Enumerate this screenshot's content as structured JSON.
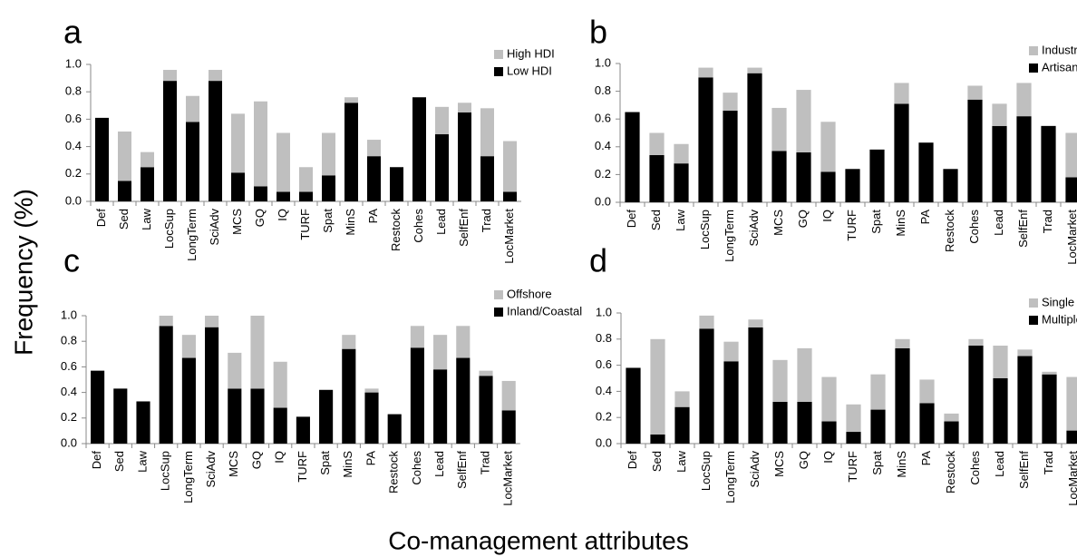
{
  "y_label": "Frequency (%)",
  "x_label": "Co-management attributes",
  "chart_data": [
    {
      "type": "bar",
      "stacked": true,
      "panel_label": "a",
      "categories": [
        "Def",
        "Sed",
        "Law",
        "LocSup",
        "LongTerm",
        "SciAdv",
        "MCS",
        "GQ",
        "IQ",
        "TURF",
        "Spat",
        "MinS",
        "PA",
        "Restock",
        "Cohes",
        "Lead",
        "SelfEnf",
        "Trad",
        "LocMarket"
      ],
      "series": [
        {
          "name": "Low HDI",
          "color": "#000000",
          "values": [
            0.61,
            0.15,
            0.25,
            0.88,
            0.58,
            0.88,
            0.21,
            0.11,
            0.07,
            0.07,
            0.19,
            0.72,
            0.33,
            0.25,
            0.76,
            0.49,
            0.65,
            0.33,
            0.07
          ]
        },
        {
          "name": "High HDI",
          "color": "#bfbfbf",
          "values": [
            0,
            0.36,
            0.11,
            0.08,
            0.19,
            0.08,
            0.43,
            0.62,
            0.43,
            0.18,
            0.31,
            0.04,
            0.12,
            0,
            0,
            0.2,
            0.07,
            0.35,
            0.37
          ]
        }
      ],
      "ylim": [
        0,
        1
      ],
      "yticks": [
        {
          "value": 0,
          "label": "0.0"
        },
        0.2,
        0.4,
        0.6,
        0.8,
        {
          "value": 1,
          "label": "1.0"
        }
      ]
    },
    {
      "type": "bar",
      "stacked": true,
      "panel_label": "b",
      "categories": [
        "Def",
        "Sed",
        "Law",
        "LocSup",
        "LongTerm",
        "SciAdv",
        "MCS",
        "GQ",
        "IQ",
        "TURF",
        "Spat",
        "MinS",
        "PA",
        "Restock",
        "Cohes",
        "Lead",
        "SelfEnf",
        "Trad",
        "LocMarket"
      ],
      "series": [
        {
          "name": "Artisanal",
          "color": "#000000",
          "values": [
            0.65,
            0.34,
            0.28,
            0.9,
            0.66,
            0.93,
            0.37,
            0.36,
            0.22,
            0.24,
            0.38,
            0.71,
            0.43,
            0.24,
            0.74,
            0.55,
            0.62,
            0.55,
            0.18
          ]
        },
        {
          "name": "Industrial",
          "color": "#bfbfbf",
          "values": [
            0,
            0.16,
            0.14,
            0.07,
            0.13,
            0.04,
            0.31,
            0.45,
            0.36,
            0,
            0,
            0.15,
            0,
            0,
            0.1,
            0.16,
            0.24,
            0,
            0.32
          ]
        }
      ],
      "ylim": [
        0,
        1
      ],
      "yticks": [
        {
          "value": 0,
          "label": "0.0"
        },
        0.2,
        0.4,
        0.6,
        0.8,
        {
          "value": 1,
          "label": "1.0"
        }
      ]
    },
    {
      "type": "bar",
      "stacked": true,
      "panel_label": "c",
      "categories": [
        "Def",
        "Sed",
        "Law",
        "LocSup",
        "LongTerm",
        "SciAdv",
        "MCS",
        "GQ",
        "IQ",
        "TURF",
        "Spat",
        "MinS",
        "PA",
        "Restock",
        "Cohes",
        "Lead",
        "SelfEnf",
        "Trad",
        "LocMarket"
      ],
      "series": [
        {
          "name": "Inland/Coastal",
          "color": "#000000",
          "values": [
            0.57,
            0.43,
            0.33,
            0.92,
            0.67,
            0.91,
            0.43,
            0.43,
            0.28,
            0.21,
            0.42,
            0.74,
            0.4,
            0.23,
            0.75,
            0.58,
            0.67,
            0.53,
            0.26
          ]
        },
        {
          "name": "Offshore",
          "color": "#bfbfbf",
          "values": [
            0,
            0,
            0,
            0.08,
            0.18,
            0.09,
            0.28,
            0.57,
            0.36,
            0,
            0,
            0.11,
            0.03,
            0,
            0.17,
            0.27,
            0.25,
            0.04,
            0.23
          ]
        }
      ],
      "ylim": [
        0,
        1
      ],
      "yticks": [
        {
          "value": 0,
          "label": "0.0"
        },
        0.2,
        0.4,
        0.6,
        0.8,
        {
          "value": 1,
          "label": "1.0"
        }
      ]
    },
    {
      "type": "bar",
      "stacked": true,
      "panel_label": "d",
      "categories": [
        "Def",
        "Sed",
        "Law",
        "LocSup",
        "LongTerm",
        "SciAdv",
        "MCS",
        "GQ",
        "IQ",
        "TURF",
        "Spat",
        "MinS",
        "PA",
        "Restock",
        "Cohes",
        "Lead",
        "SelfEnf",
        "Trad",
        "LocMarket"
      ],
      "series": [
        {
          "name": "Multiple-species",
          "color": "#000000",
          "values": [
            0.58,
            0.07,
            0.28,
            0.88,
            0.63,
            0.89,
            0.32,
            0.32,
            0.17,
            0.09,
            0.26,
            0.73,
            0.31,
            0.17,
            0.75,
            0.5,
            0.67,
            0.53,
            0.1
          ]
        },
        {
          "name": "Single species",
          "color": "#bfbfbf",
          "values": [
            0,
            0.73,
            0.12,
            0.1,
            0.15,
            0.06,
            0.32,
            0.41,
            0.34,
            0.21,
            0.27,
            0.07,
            0.18,
            0.06,
            0.05,
            0.25,
            0.05,
            0.02,
            0.41
          ]
        }
      ],
      "ylim": [
        0,
        1
      ],
      "yticks": [
        {
          "value": 0,
          "label": "0.0"
        },
        0.2,
        0.4,
        0.6,
        0.8,
        {
          "value": 1,
          "label": "1.0"
        }
      ]
    }
  ]
}
